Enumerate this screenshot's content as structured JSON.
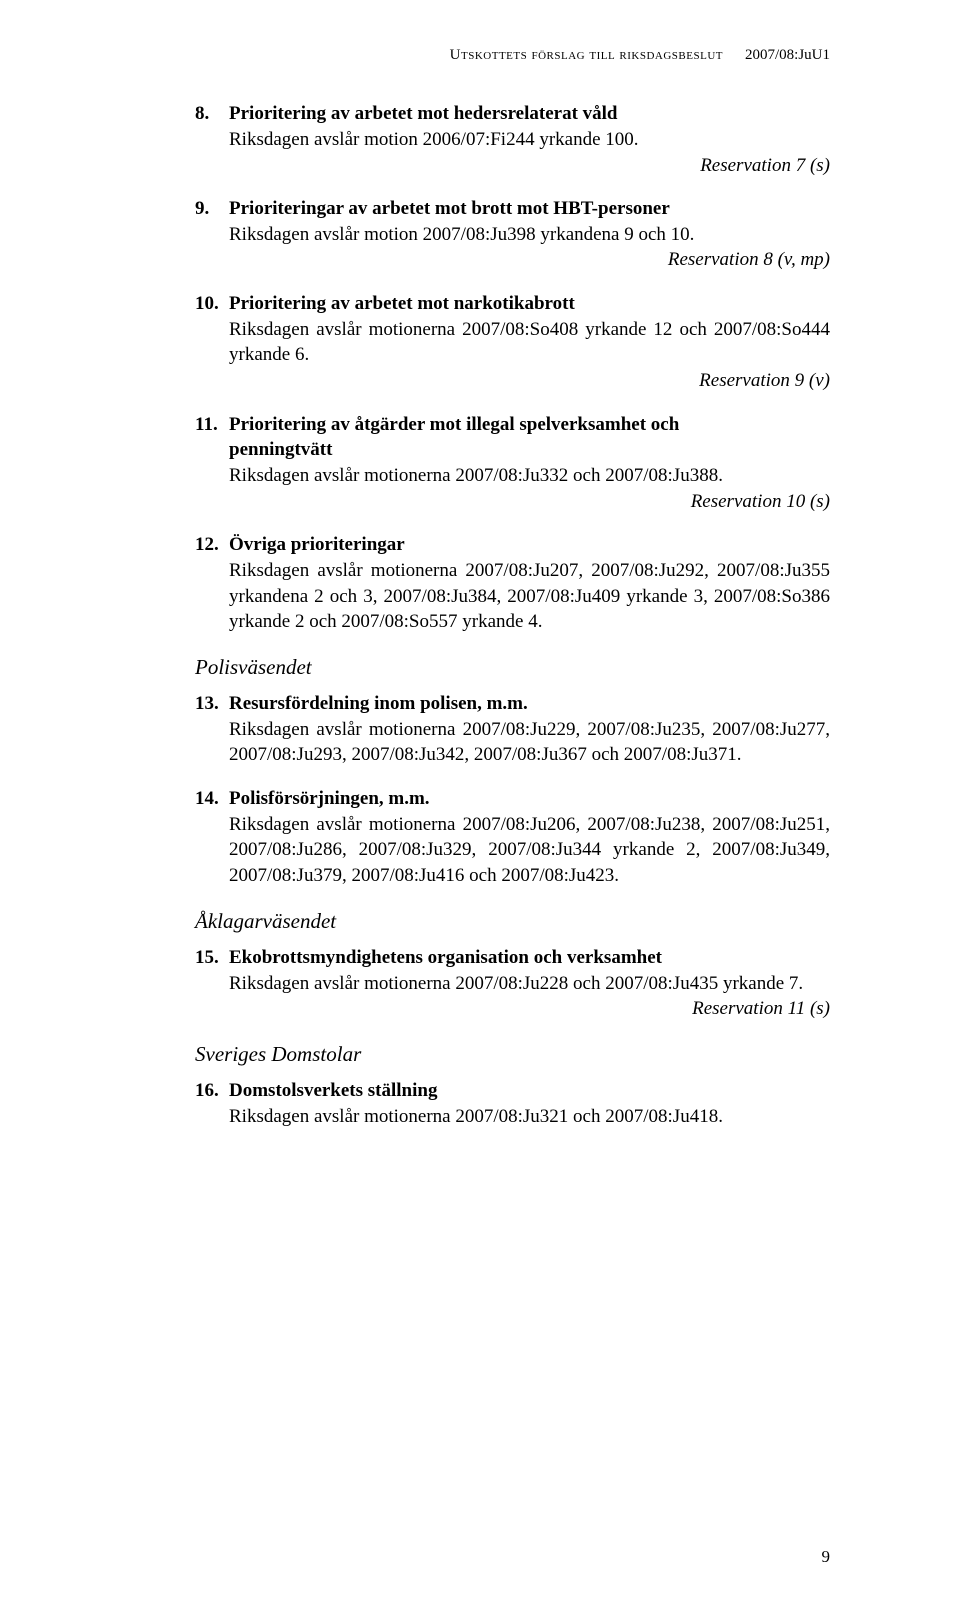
{
  "header": {
    "left": "Utskottets förslag till riksdagsbeslut",
    "right": "2007/08:JuU1"
  },
  "items": {
    "i8": {
      "num": "8.",
      "title": "Prioritering av arbetet mot hedersrelaterat våld",
      "body": "Riksdagen avslår motion 2006/07:Fi244 yrkande 100.",
      "reservation": "Reservation 7 (s)"
    },
    "i9": {
      "num": "9.",
      "title": "Prioriteringar av arbetet mot brott mot HBT-personer",
      "body": "Riksdagen avslår motion 2007/08:Ju398 yrkandena 9 och 10.",
      "reservation": "Reservation 8 (v, mp)"
    },
    "i10": {
      "num": "10.",
      "title": "Prioritering av arbetet mot narkotikabrott",
      "body": "Riksdagen avslår motionerna 2007/08:So408 yrkande 12 och 2007/08:So444 yrkande 6.",
      "reservation": "Reservation 9 (v)"
    },
    "i11": {
      "num": "11.",
      "titleA": "Prioritering av åtgärder mot illegal spelverksamhet och",
      "titleB": "penningtvätt",
      "body": "Riksdagen avslår motionerna 2007/08:Ju332 och 2007/08:Ju388.",
      "reservation": "Reservation 10 (s)"
    },
    "i12": {
      "num": "12.",
      "title": "Övriga prioriteringar",
      "body": "Riksdagen avslår motionerna 2007/08:Ju207, 2007/08:Ju292, 2007/08:Ju355 yrkandena 2 och 3, 2007/08:Ju384, 2007/08:Ju409 yrkande 3, 2007/08:So386 yrkande 2 och 2007/08:So557 yrkande 4."
    },
    "i13": {
      "num": "13.",
      "title": "Resursfördelning inom polisen, m.m.",
      "body": "Riksdagen avslår motionerna 2007/08:Ju229, 2007/08:Ju235, 2007/08:Ju277, 2007/08:Ju293, 2007/08:Ju342, 2007/08:Ju367 och 2007/08:Ju371."
    },
    "i14": {
      "num": "14.",
      "title": "Polisförsörjningen, m.m.",
      "body": "Riksdagen avslår motionerna 2007/08:Ju206, 2007/08:Ju238, 2007/08:Ju251, 2007/08:Ju286, 2007/08:Ju329, 2007/08:Ju344 yrkande 2, 2007/08:Ju349, 2007/08:Ju379, 2007/08:Ju416 och 2007/08:Ju423."
    },
    "i15": {
      "num": "15.",
      "title": "Ekobrottsmyndighetens organisation och verksamhet",
      "body": "Riksdagen avslår motionerna 2007/08:Ju228 och 2007/08:Ju435 yrkande 7.",
      "reservation": "Reservation 11 (s)"
    },
    "i16": {
      "num": "16.",
      "title": "Domstolsverkets ställning",
      "body": "Riksdagen avslår motionerna 2007/08:Ju321 och 2007/08:Ju418."
    }
  },
  "sections": {
    "polis": "Polisväsendet",
    "aklagar": "Åklagarväsendet",
    "domstol": "Sveriges Domstolar"
  },
  "pageNumber": "9"
}
